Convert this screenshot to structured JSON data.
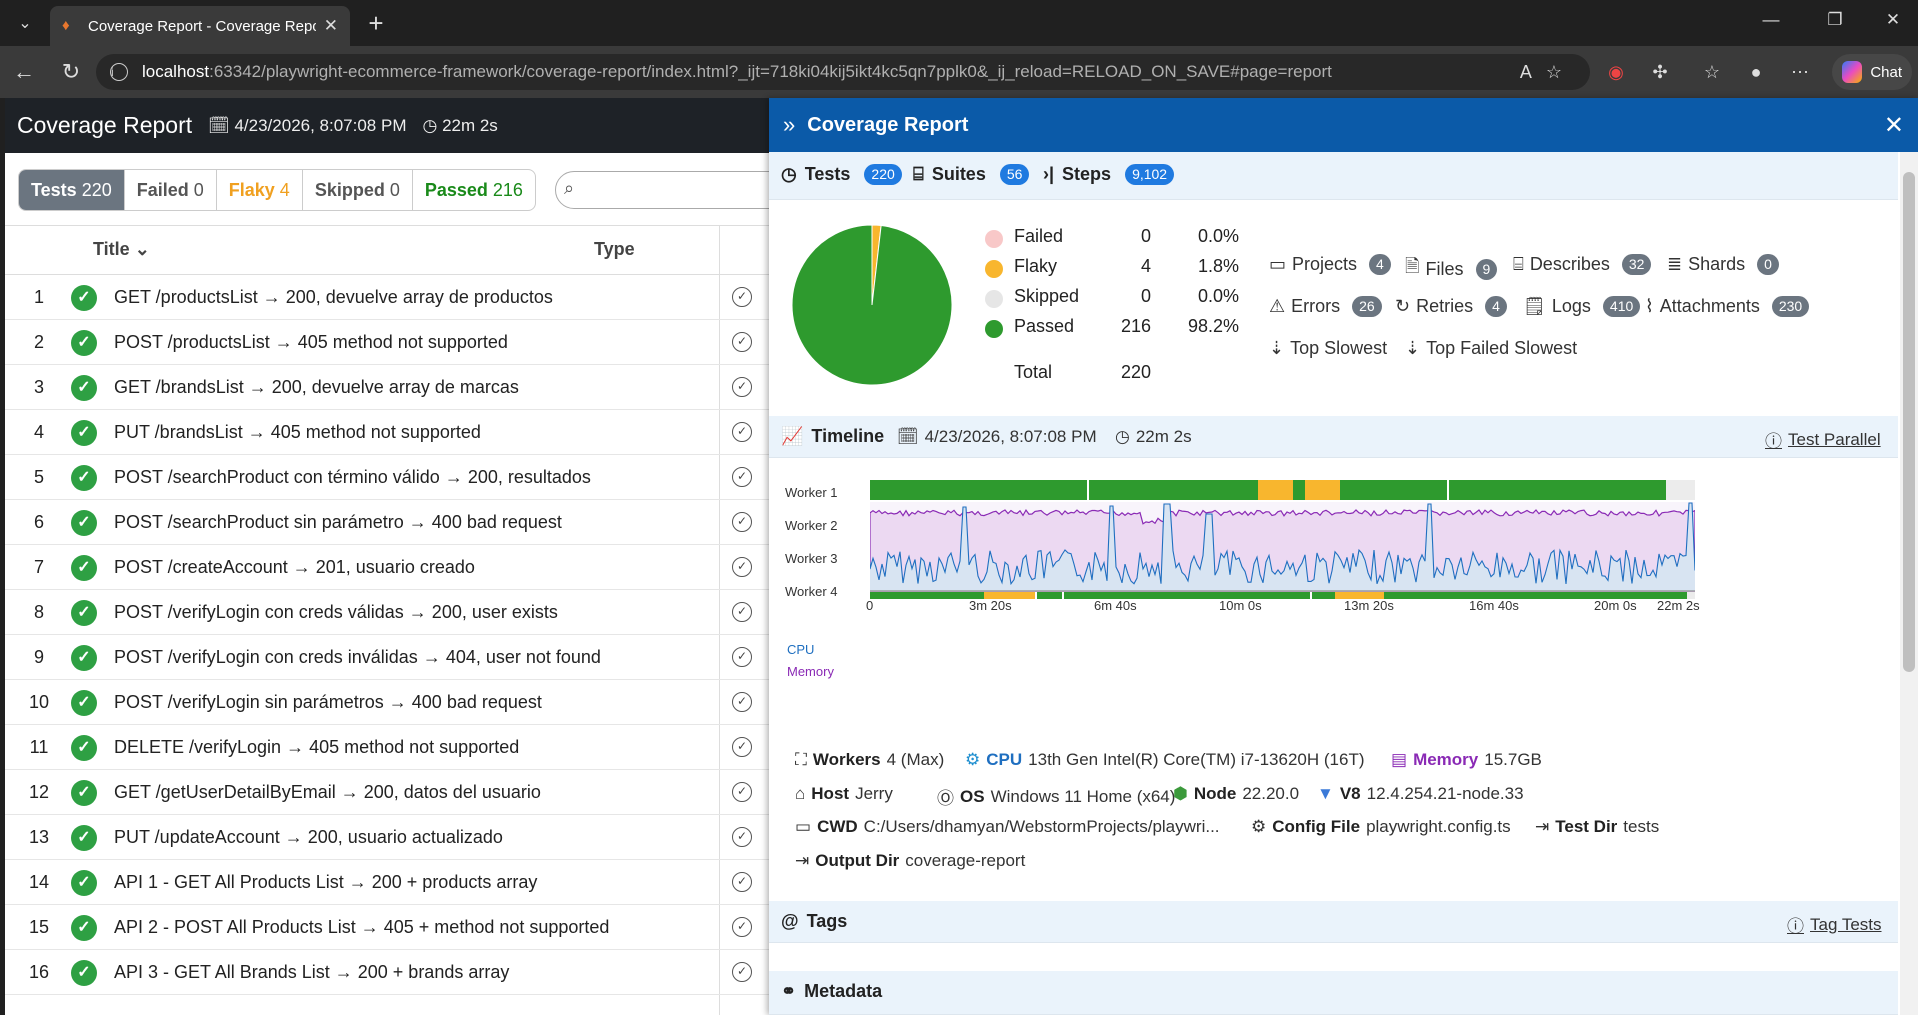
{
  "browser": {
    "tab_title": "Coverage Report - Coverage Report",
    "url_host": "localhost",
    "url_rest": ":63342/playwright-ecommerce-framework/coverage-report/index.html?_ijt=718ki04kij5ikt4kc5qn7pplk0&_ij_reload=RELOAD_ON_SAVE#page=report",
    "chat_label": "Chat"
  },
  "report": {
    "title": "Coverage Report",
    "date": "4/23/2026, 8:07:08 PM",
    "duration": "22m 2s"
  },
  "filters": [
    {
      "label": "Tests",
      "count": "220"
    },
    {
      "label": "Failed",
      "count": "0"
    },
    {
      "label": "Flaky",
      "count": "4"
    },
    {
      "label": "Skipped",
      "count": "0"
    },
    {
      "label": "Passed",
      "count": "216"
    }
  ],
  "columns": {
    "title": "Title",
    "type": "Type"
  },
  "tests": [
    {
      "n": "1",
      "title": "GET /productsList → 200, devuelve array de productos"
    },
    {
      "n": "2",
      "title": "POST /productsList → 405 method not supported"
    },
    {
      "n": "3",
      "title": "GET /brandsList → 200, devuelve array de marcas"
    },
    {
      "n": "4",
      "title": "PUT /brandsList → 405 method not supported"
    },
    {
      "n": "5",
      "title": "POST /searchProduct con término válido → 200, resultados"
    },
    {
      "n": "6",
      "title": "POST /searchProduct sin parámetro → 400 bad request"
    },
    {
      "n": "7",
      "title": "POST /createAccount → 201, usuario creado"
    },
    {
      "n": "8",
      "title": "POST /verifyLogin con creds válidas → 200, user exists"
    },
    {
      "n": "9",
      "title": "POST /verifyLogin con creds inválidas → 404, user not found"
    },
    {
      "n": "10",
      "title": "POST /verifyLogin sin parámetros → 400 bad request"
    },
    {
      "n": "11",
      "title": "DELETE /verifyLogin → 405 method not supported"
    },
    {
      "n": "12",
      "title": "GET /getUserDetailByEmail → 200, datos del usuario"
    },
    {
      "n": "13",
      "title": "PUT /updateAccount → 200, usuario actualizado"
    },
    {
      "n": "14",
      "title": "API 1 - GET All Products List → 200 + products array"
    },
    {
      "n": "15",
      "title": "API 2 - POST All Products List → 405 + method not supported"
    },
    {
      "n": "16",
      "title": "API 3 - GET All Brands List → 200 + brands array"
    }
  ],
  "panel": {
    "title": "Coverage Report",
    "tests_label": "Tests",
    "tests_count": "220",
    "suites_label": "Suites",
    "suites_count": "56",
    "steps_label": "Steps",
    "steps_count": "9,102",
    "summary": [
      {
        "label": "Failed",
        "count": "0",
        "pct": "0.0%",
        "color": "#f8c8c8"
      },
      {
        "label": "Flaky",
        "count": "4",
        "pct": "1.8%",
        "color": "#f8b62e"
      },
      {
        "label": "Skipped",
        "count": "0",
        "pct": "0.0%",
        "color": "#e6e6e6"
      },
      {
        "label": "Passed",
        "count": "216",
        "pct": "98.2%",
        "color": "#2e9a2e"
      }
    ],
    "total_label": "Total",
    "total_count": "220",
    "links": [
      {
        "label": "Projects",
        "count": "4"
      },
      {
        "label": "Files",
        "count": "9"
      },
      {
        "label": "Describes",
        "count": "32"
      },
      {
        "label": "Shards",
        "count": "0"
      },
      {
        "label": "Errors",
        "count": "26"
      },
      {
        "label": "Retries",
        "count": "4"
      },
      {
        "label": "Logs",
        "count": "410"
      },
      {
        "label": "Attachments",
        "count": "230"
      }
    ],
    "top_slowest": "Top Slowest",
    "top_failed_slowest": "Top Failed Slowest",
    "timeline_label": "Timeline",
    "timeline_date": "4/23/2026, 8:07:08 PM",
    "timeline_duration": "22m 2s",
    "test_parallel": "Test Parallel",
    "workers": [
      "Worker 1",
      "Worker 2",
      "Worker 3",
      "Worker 4"
    ],
    "cpu_label": "CPU",
    "memory_label": "Memory",
    "axis_ticks": [
      "0",
      "3m 20s",
      "6m 40s",
      "10m 0s",
      "13m 20s",
      "16m 40s",
      "20m 0s",
      "22m 2s"
    ],
    "env": {
      "workers_k": "Workers",
      "workers_v": "4 (Max)",
      "cpu_k": "CPU",
      "cpu_v": "13th Gen Intel(R) Core(TM) i7-13620H (16T)",
      "memory_k": "Memory",
      "memory_v": "15.7GB",
      "host_k": "Host",
      "host_v": "Jerry",
      "os_k": "OS",
      "os_v": "Windows 11 Home (x64)",
      "node_k": "Node",
      "node_v": "22.20.0",
      "v8_k": "V8",
      "v8_v": "12.4.254.21-node.33",
      "cwd_k": "CWD",
      "cwd_v": "C:/Users/dhamyan/WebstormProjects/playwri...",
      "config_k": "Config File",
      "config_v": "playwright.config.ts",
      "testdir_k": "Test Dir",
      "testdir_v": "tests",
      "outdir_k": "Output Dir",
      "outdir_v": "coverage-report"
    },
    "tags_label": "Tags",
    "tag_tests": "Tag Tests",
    "metadata_label": "Metadata"
  },
  "chart_data": {
    "type": "pie",
    "categories": [
      "Failed",
      "Flaky",
      "Skipped",
      "Passed"
    ],
    "values": [
      0,
      4,
      0,
      216
    ],
    "colors": [
      "#f8c8c8",
      "#f8b62e",
      "#e6e6e6",
      "#2e9a2e"
    ]
  }
}
